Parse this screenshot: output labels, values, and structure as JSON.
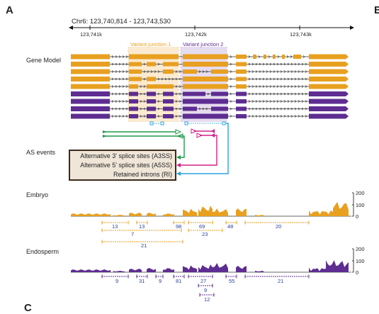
{
  "panel_letters": {
    "a": "A",
    "b": "B",
    "c": "C"
  },
  "coordinates": "Chr6: 123,740,814 - 123,743,530",
  "ruler_ticks": [
    "123,741k",
    "123,742k",
    "123,743k"
  ],
  "junction_labels": {
    "j1": "Variant junction 1",
    "j2": "Variant junction 2"
  },
  "track_labels": {
    "gene_model": "Gene Model",
    "as_events": "AS events",
    "embryo": "Embryo",
    "endosperm": "Endosperm"
  },
  "as_event_types": [
    "Alternative 3' splice sites (A3SS)",
    "Alternative 5' splice sites (A5SS)",
    "Retained introns (RI)"
  ],
  "coverage_axis_ticks": [
    "200",
    "100",
    "0"
  ],
  "embryo_junction_counts": [
    "13",
    "13",
    "98",
    "69",
    "48",
    "20",
    "7",
    "23",
    "21"
  ],
  "endosperm_junction_counts": [
    "9",
    "31",
    "9",
    "81",
    "27",
    "55",
    "21",
    "9",
    "12"
  ],
  "colors": {
    "orange": "#e8a020",
    "purple": "#5e2d91",
    "green": "#1f9a4a",
    "magenta": "#d0228a",
    "blue": "#29a3dd",
    "junction_count": "#2a3fa0"
  }
}
